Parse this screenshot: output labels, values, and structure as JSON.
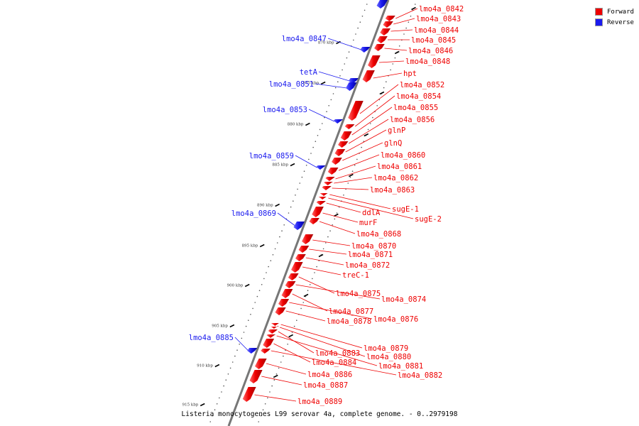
{
  "legend": {
    "items": [
      {
        "label": "Forward",
        "color": "#ee0000"
      },
      {
        "label": "Reverse",
        "color": "#1a1aee"
      }
    ]
  },
  "caption": "Listeria monocytogenes L99 serovar 4a, complete genome. - 0..2979198",
  "colors": {
    "forward": "#ee0000",
    "reverse": "#1a1aee",
    "backbone": "#777777"
  },
  "ticks": [
    "870 kbp",
    "875 kbp",
    "880 kbp",
    "885 kbp",
    "890 kbp",
    "895 kbp",
    "900 kbp",
    "905 kbp",
    "910 kbp",
    "915 kbp"
  ],
  "forward_genes": [
    {
      "label": "lmo4a_0842"
    },
    {
      "label": "lmo4a_0843"
    },
    {
      "label": "lmo4a_0844"
    },
    {
      "label": "lmo4a_0845"
    },
    {
      "label": "lmo4a_0846"
    },
    {
      "label": "lmo4a_0848"
    },
    {
      "label": "hpt"
    },
    {
      "label": "lmo4a_0852"
    },
    {
      "label": "lmo4a_0854"
    },
    {
      "label": "lmo4a_0855"
    },
    {
      "label": "lmo4a_0856"
    },
    {
      "label": "glnP"
    },
    {
      "label": "glnQ"
    },
    {
      "label": "lmo4a_0860"
    },
    {
      "label": "lmo4a_0861"
    },
    {
      "label": "lmo4a_0862"
    },
    {
      "label": "lmo4a_0863"
    },
    {
      "label": "sugE-1"
    },
    {
      "label": "sugE-2"
    },
    {
      "label": "ddlA"
    },
    {
      "label": "murF"
    },
    {
      "label": "lmo4a_0868"
    },
    {
      "label": "lmo4a_0870"
    },
    {
      "label": "lmo4a_0871"
    },
    {
      "label": "lmo4a_0872"
    },
    {
      "label": "treC-1"
    },
    {
      "label": "lmo4a_0875"
    },
    {
      "label": "lmo4a_0874"
    },
    {
      "label": "lmo4a_0877"
    },
    {
      "label": "lmo4a_0876"
    },
    {
      "label": "lmo4a_0878"
    },
    {
      "label": "lmo4a_0879"
    },
    {
      "label": "lmo4a_0880"
    },
    {
      "label": "lmo4a_0883"
    },
    {
      "label": "lmo4a_0881"
    },
    {
      "label": "lmo4a_0884"
    },
    {
      "label": "lmo4a_0882"
    },
    {
      "label": "lmo4a_0886"
    },
    {
      "label": "lmo4a_0887"
    },
    {
      "label": "lmo4a_0889"
    }
  ],
  "reverse_genes": [
    {
      "label": "lmo4a_0847"
    },
    {
      "label": "tetA"
    },
    {
      "label": "lmo4a_0851"
    },
    {
      "label": "lmo4a_0853"
    },
    {
      "label": "lmo4a_0859"
    },
    {
      "label": "lmo4a_0869"
    },
    {
      "label": "lmo4a_0885"
    }
  ]
}
